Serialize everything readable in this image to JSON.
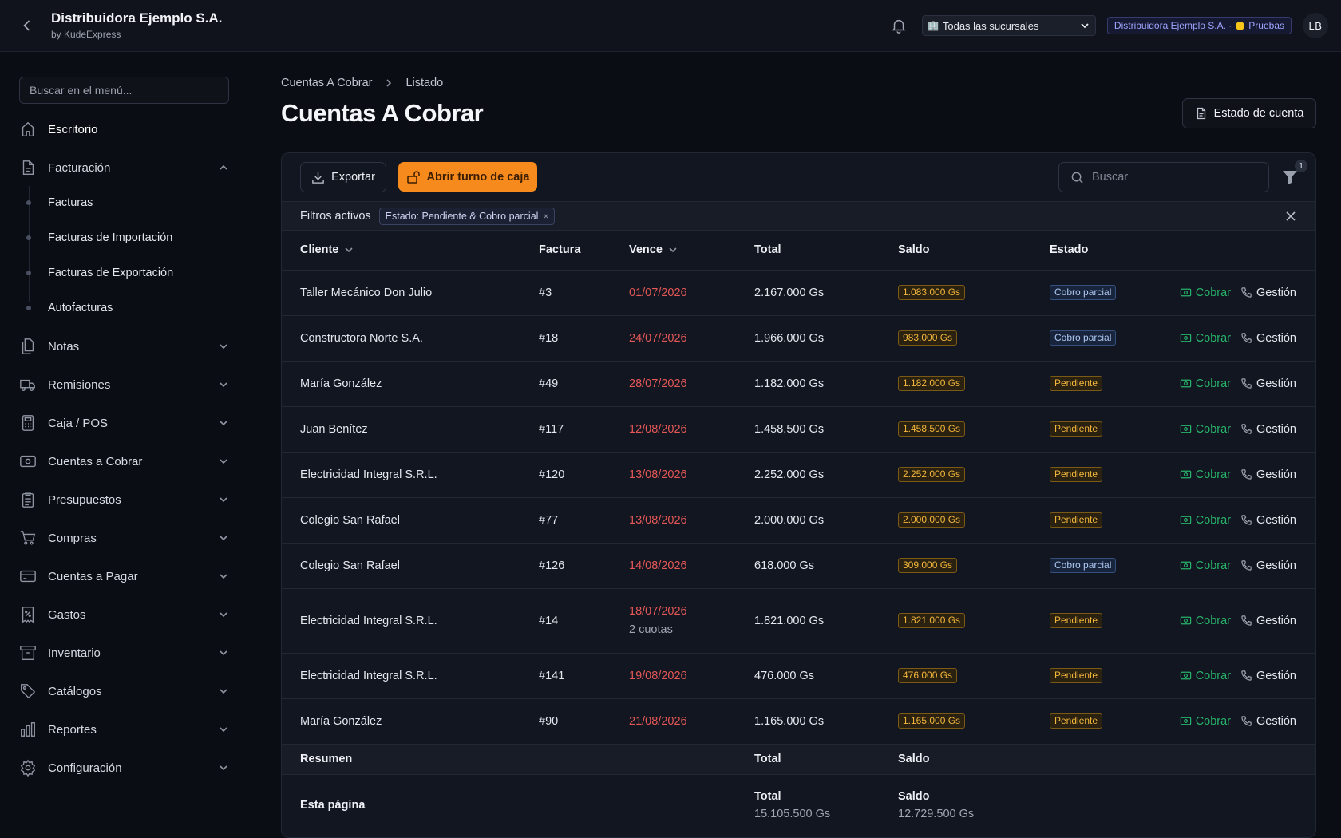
{
  "header": {
    "title": "Distribuidora Ejemplo S.A.",
    "subtitle": "by KudeExpress",
    "branch_select": "Todas las sucursales",
    "company_badge": "Distribuidora Ejemplo S.A. ·",
    "env_badge": "Pruebas",
    "avatar": "LB"
  },
  "sidebar": {
    "search_placeholder": "Buscar en el menú...",
    "items": [
      {
        "label": "Escritorio",
        "icon": "home-icon"
      },
      {
        "label": "Facturación",
        "icon": "document-icon"
      },
      {
        "label": "Notas",
        "icon": "notes-icon"
      },
      {
        "label": "Remisiones",
        "icon": "truck-icon"
      },
      {
        "label": "Caja / POS",
        "icon": "calculator-icon"
      },
      {
        "label": "Cuentas a Cobrar",
        "icon": "money-icon"
      },
      {
        "label": "Presupuestos",
        "icon": "clipboard-icon"
      },
      {
        "label": "Compras",
        "icon": "cart-icon"
      },
      {
        "label": "Cuentas a Pagar",
        "icon": "credit-card-icon"
      },
      {
        "label": "Gastos",
        "icon": "receipt-icon"
      },
      {
        "label": "Inventario",
        "icon": "archive-icon"
      },
      {
        "label": "Catálogos",
        "icon": "tag-icon"
      },
      {
        "label": "Reportes",
        "icon": "bar-chart-icon"
      },
      {
        "label": "Configuración",
        "icon": "gear-icon"
      }
    ],
    "facturacion_sub": [
      "Facturas",
      "Facturas de Importación",
      "Facturas de Exportación",
      "Autofacturas"
    ]
  },
  "main": {
    "breadcrumb": [
      "Cuentas A Cobrar",
      "Listado"
    ],
    "title": "Cuentas A Cobrar",
    "estado_button": "Estado de cuenta",
    "export_button": "Exportar",
    "caja_button": "Abrir turno de caja",
    "search_placeholder": "Buscar",
    "filter_count": "1",
    "filters_label": "Filtros activos",
    "filter_chip": "Estado: Pendiente & Cobro parcial",
    "filter_chip_close": "×"
  },
  "table": {
    "columns": [
      "Cliente",
      "Factura",
      "Vence",
      "Total",
      "Saldo",
      "Estado"
    ],
    "action_cobrar": "Cobrar",
    "action_gestion": "Gestión",
    "rows": [
      {
        "cliente": "Taller Mecánico Don Julio",
        "factura": "#3",
        "vence": "01/07/2026",
        "cuotas": "",
        "total": "2.167.000 Gs",
        "saldo": "1.083.000 Gs",
        "estado": "Cobro parcial",
        "estado_kind": "parcial"
      },
      {
        "cliente": "Constructora Norte S.A.",
        "factura": "#18",
        "vence": "24/07/2026",
        "cuotas": "",
        "total": "1.966.000 Gs",
        "saldo": "983.000 Gs",
        "estado": "Cobro parcial",
        "estado_kind": "parcial"
      },
      {
        "cliente": "María González",
        "factura": "#49",
        "vence": "28/07/2026",
        "cuotas": "",
        "total": "1.182.000 Gs",
        "saldo": "1.182.000 Gs",
        "estado": "Pendiente",
        "estado_kind": "pend"
      },
      {
        "cliente": "Juan Benítez",
        "factura": "#117",
        "vence": "12/08/2026",
        "cuotas": "",
        "total": "1.458.500 Gs",
        "saldo": "1.458.500 Gs",
        "estado": "Pendiente",
        "estado_kind": "pend"
      },
      {
        "cliente": "Electricidad Integral S.R.L.",
        "factura": "#120",
        "vence": "13/08/2026",
        "cuotas": "",
        "total": "2.252.000 Gs",
        "saldo": "2.252.000 Gs",
        "estado": "Pendiente",
        "estado_kind": "pend"
      },
      {
        "cliente": "Colegio San Rafael",
        "factura": "#77",
        "vence": "13/08/2026",
        "cuotas": "",
        "total": "2.000.000 Gs",
        "saldo": "2.000.000 Gs",
        "estado": "Pendiente",
        "estado_kind": "pend"
      },
      {
        "cliente": "Colegio San Rafael",
        "factura": "#126",
        "vence": "14/08/2026",
        "cuotas": "",
        "total": "618.000 Gs",
        "saldo": "309.000 Gs",
        "estado": "Cobro parcial",
        "estado_kind": "parcial"
      },
      {
        "cliente": "Electricidad Integral S.R.L.",
        "factura": "#14",
        "vence": "18/07/2026",
        "cuotas": "2 cuotas",
        "total": "1.821.000 Gs",
        "saldo": "1.821.000 Gs",
        "estado": "Pendiente",
        "estado_kind": "pend"
      },
      {
        "cliente": "Electricidad Integral S.R.L.",
        "factura": "#141",
        "vence": "19/08/2026",
        "cuotas": "",
        "total": "476.000 Gs",
        "saldo": "476.000 Gs",
        "estado": "Pendiente",
        "estado_kind": "pend"
      },
      {
        "cliente": "María González",
        "factura": "#90",
        "vence": "21/08/2026",
        "cuotas": "",
        "total": "1.165.000 Gs",
        "saldo": "1.165.000 Gs",
        "estado": "Pendiente",
        "estado_kind": "pend"
      }
    ],
    "summary": {
      "label": "Resumen",
      "total_label": "Total",
      "saldo_label": "Saldo",
      "page_label": "Esta página",
      "page_total": "15.105.500 Gs",
      "page_saldo": "12.729.500 Gs"
    }
  },
  "colors": {
    "accent_orange": "#f68a1c",
    "cobrar_green": "#27b36a",
    "date_red": "#e45757",
    "pending_amber": "#f2b63b"
  }
}
